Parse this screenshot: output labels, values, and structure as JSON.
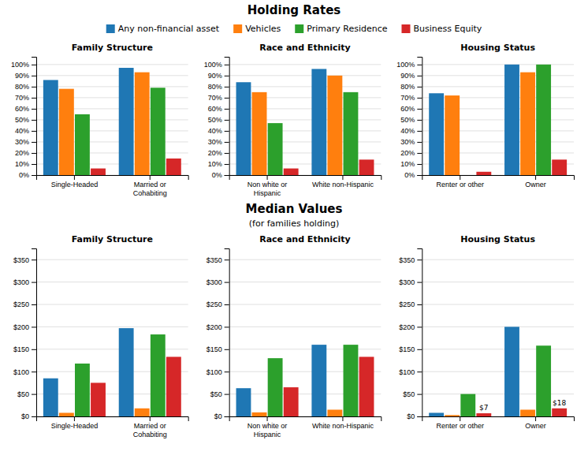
{
  "chart_data": [
    {
      "type": "bar",
      "title": "Family Structure",
      "categories": [
        "Single-Headed",
        "Married or\nCohabiting"
      ],
      "series": [
        {
          "name": "Any non-financial asset",
          "values": [
            86,
            97
          ]
        },
        {
          "name": "Vehicles",
          "values": [
            78,
            93
          ]
        },
        {
          "name": "Primary Residence",
          "values": [
            55,
            79
          ]
        },
        {
          "name": "Business Equity",
          "values": [
            6,
            15
          ]
        }
      ],
      "ylim": [
        0,
        107
      ],
      "yticks": [
        {
          "value": 0,
          "label": "0%"
        },
        {
          "value": 10,
          "label": "10%"
        },
        {
          "value": 20,
          "label": "20%"
        },
        {
          "value": 30,
          "label": "30%"
        },
        {
          "value": 40,
          "label": "40%"
        },
        {
          "value": 50,
          "label": "50%"
        },
        {
          "value": 60,
          "label": "60%"
        },
        {
          "value": 70,
          "label": "70%"
        },
        {
          "value": 80,
          "label": "80%"
        },
        {
          "value": 90,
          "label": "90%"
        },
        {
          "value": 100,
          "label": "100%"
        }
      ],
      "grid": true,
      "legend": "top"
    },
    {
      "type": "bar",
      "title": "Race and Ethnicity",
      "categories": [
        "Non white or\nHispanic",
        "White non-Hispanic"
      ],
      "series": [
        {
          "name": "Any non-financial asset",
          "values": [
            84,
            96
          ]
        },
        {
          "name": "Vehicles",
          "values": [
            75,
            90
          ]
        },
        {
          "name": "Primary Residence",
          "values": [
            47,
            75
          ]
        },
        {
          "name": "Business Equity",
          "values": [
            6,
            14
          ]
        }
      ],
      "ylim": [
        0,
        107
      ],
      "yticks": [
        {
          "value": 0,
          "label": "0%"
        },
        {
          "value": 10,
          "label": "10%"
        },
        {
          "value": 20,
          "label": "20%"
        },
        {
          "value": 30,
          "label": "30%"
        },
        {
          "value": 40,
          "label": "40%"
        },
        {
          "value": 50,
          "label": "50%"
        },
        {
          "value": 60,
          "label": "60%"
        },
        {
          "value": 70,
          "label": "70%"
        },
        {
          "value": 80,
          "label": "80%"
        },
        {
          "value": 90,
          "label": "90%"
        },
        {
          "value": 100,
          "label": "100%"
        }
      ],
      "grid": true,
      "legend": "top"
    },
    {
      "type": "bar",
      "title": "Housing Status",
      "categories": [
        "Renter or other",
        "Owner"
      ],
      "series": [
        {
          "name": "Any non-financial asset",
          "values": [
            74,
            100
          ]
        },
        {
          "name": "Vehicles",
          "values": [
            72,
            93
          ]
        },
        {
          "name": "Primary Residence",
          "values": [
            0,
            100
          ]
        },
        {
          "name": "Business Equity",
          "values": [
            3,
            14
          ]
        }
      ],
      "ylim": [
        0,
        107
      ],
      "yticks": [
        {
          "value": 0,
          "label": "0%"
        },
        {
          "value": 10,
          "label": "10%"
        },
        {
          "value": 20,
          "label": "20%"
        },
        {
          "value": 30,
          "label": "30%"
        },
        {
          "value": 40,
          "label": "40%"
        },
        {
          "value": 50,
          "label": "50%"
        },
        {
          "value": 60,
          "label": "60%"
        },
        {
          "value": 70,
          "label": "70%"
        },
        {
          "value": 80,
          "label": "80%"
        },
        {
          "value": 90,
          "label": "90%"
        },
        {
          "value": 100,
          "label": "100%"
        }
      ],
      "grid": true,
      "legend": "top"
    },
    {
      "type": "bar",
      "title": "Family Structure",
      "categories": [
        "Single-Headed",
        "Married or\nCohabiting"
      ],
      "series": [
        {
          "name": "Any non-financial asset",
          "values": [
            85,
            197
          ]
        },
        {
          "name": "Vehicles",
          "values": [
            8,
            18
          ]
        },
        {
          "name": "Primary Residence",
          "values": [
            118,
            183
          ]
        },
        {
          "name": "Business Equity",
          "values": [
            75,
            133
          ]
        }
      ],
      "ylim": [
        0,
        375
      ],
      "yticks": [
        {
          "value": 0,
          "label": "$0"
        },
        {
          "value": 50,
          "label": "$50"
        },
        {
          "value": 100,
          "label": "$100"
        },
        {
          "value": 150,
          "label": "$150"
        },
        {
          "value": 200,
          "label": "$200"
        },
        {
          "value": 250,
          "label": "$250"
        },
        {
          "value": 300,
          "label": "$300"
        },
        {
          "value": 350,
          "label": "$350"
        }
      ],
      "grid": true,
      "legend": "top"
    },
    {
      "type": "bar",
      "title": "Race and Ethnicity",
      "categories": [
        "Non white or\nHispanic",
        "White non-Hispanic"
      ],
      "series": [
        {
          "name": "Any non-financial asset",
          "values": [
            63,
            160
          ]
        },
        {
          "name": "Vehicles",
          "values": [
            9,
            15
          ]
        },
        {
          "name": "Primary Residence",
          "values": [
            130,
            160
          ]
        },
        {
          "name": "Business Equity",
          "values": [
            65,
            133
          ]
        }
      ],
      "ylim": [
        0,
        375
      ],
      "yticks": [
        {
          "value": 0,
          "label": "$0"
        },
        {
          "value": 50,
          "label": "$50"
        },
        {
          "value": 100,
          "label": "$100"
        },
        {
          "value": 150,
          "label": "$150"
        },
        {
          "value": 200,
          "label": "$200"
        },
        {
          "value": 250,
          "label": "$250"
        },
        {
          "value": 300,
          "label": "$300"
        },
        {
          "value": 350,
          "label": "$350"
        }
      ],
      "grid": true,
      "legend": "top"
    },
    {
      "type": "bar",
      "title": "Housing Status",
      "categories": [
        "Renter or other",
        "Owner"
      ],
      "series": [
        {
          "name": "Any non-financial asset",
          "values": [
            8,
            200
          ]
        },
        {
          "name": "Vehicles",
          "values": [
            3,
            15
          ]
        },
        {
          "name": "Primary Residence",
          "values": [
            50,
            158
          ]
        },
        {
          "name": "Business Equity",
          "values": [
            7,
            18
          ],
          "value_labels": [
            "$7",
            "$18"
          ],
          "data_labels": true
        }
      ],
      "ylim": [
        0,
        375
      ],
      "yticks": [
        {
          "value": 0,
          "label": "$0"
        },
        {
          "value": 50,
          "label": "$50"
        },
        {
          "value": 100,
          "label": "$100"
        },
        {
          "value": 150,
          "label": "$150"
        },
        {
          "value": 200,
          "label": "$200"
        },
        {
          "value": 250,
          "label": "$250"
        },
        {
          "value": 300,
          "label": "$300"
        },
        {
          "value": 350,
          "label": "$350"
        }
      ],
      "grid": true,
      "legend": "top"
    }
  ],
  "sections": [
    {
      "title": "Holding Rates"
    },
    {
      "title": "Median Values",
      "subtitle": "(for families holding)"
    }
  ]
}
